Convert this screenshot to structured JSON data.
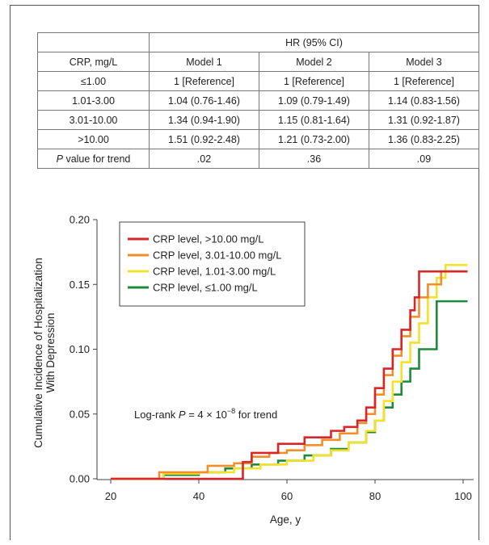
{
  "table": {
    "group_header": "HR (95% CI)",
    "headers": [
      "CRP, mg/L",
      "Model 1",
      "Model 2",
      "Model 3"
    ],
    "rows": [
      [
        "≤1.00",
        "1 [Reference]",
        "1 [Reference]",
        "1 [Reference]"
      ],
      [
        "1.01-3.00",
        "1.04 (0.76-1.46)",
        "1.09 (0.79-1.49)",
        "1.14 (0.83-1.56)"
      ],
      [
        "3.01-10.00",
        "1.34 (0.94-1.90)",
        "1.15 (0.81-1.64)",
        "1.31 (0.92-1.87)"
      ],
      [
        ">10.00",
        "1.51 (0.92-2.48)",
        "1.21 (0.73-2.00)",
        "1.36 (0.83-2.25)"
      ]
    ],
    "trend_row": {
      "label_italic": "P",
      "label_rest": " value for trend",
      "values": [
        ".02",
        ".36",
        ".09"
      ]
    }
  },
  "chart_data": {
    "type": "line",
    "xlabel": "Age, y",
    "ylabel_line1": "Cumulative Incidence of Hospitalization",
    "ylabel_line2": "With Depression",
    "xlim": [
      20,
      100
    ],
    "ylim": [
      0,
      0.2
    ],
    "xticks": [
      20,
      40,
      60,
      80,
      100
    ],
    "yticks": [
      0.0,
      0.05,
      0.1,
      0.15,
      0.2
    ],
    "ytick_labels": [
      "0.00",
      "0.05",
      "0.10",
      "0.15",
      "0.20"
    ],
    "annotation": {
      "prefix": "Log-rank ",
      "p": "P",
      "eq": " = 4 × 10",
      "exp": "−8",
      "suffix": " for trend"
    },
    "legend_position": "top-left",
    "series": [
      {
        "name": "CRP level, >10.00 mg/L",
        "color": "#d7272a",
        "points": [
          [
            20,
            0
          ],
          [
            49,
            0
          ],
          [
            50,
            0.013
          ],
          [
            52,
            0.02
          ],
          [
            56,
            0.02
          ],
          [
            58,
            0.027
          ],
          [
            62,
            0.027
          ],
          [
            64,
            0.032
          ],
          [
            70,
            0.037
          ],
          [
            73,
            0.04
          ],
          [
            76,
            0.045
          ],
          [
            78,
            0.055
          ],
          [
            80,
            0.07
          ],
          [
            82,
            0.085
          ],
          [
            84,
            0.1
          ],
          [
            86,
            0.115
          ],
          [
            88,
            0.13
          ],
          [
            89,
            0.14
          ],
          [
            90,
            0.16
          ],
          [
            92,
            0.16
          ],
          [
            101,
            0.16
          ]
        ]
      },
      {
        "name": "CRP level, 3.01-10.00 mg/L",
        "color": "#f28e2b",
        "points": [
          [
            20,
            0
          ],
          [
            30,
            0
          ],
          [
            31,
            0.005
          ],
          [
            38,
            0.005
          ],
          [
            42,
            0.01
          ],
          [
            48,
            0.012
          ],
          [
            52,
            0.017
          ],
          [
            56,
            0.02
          ],
          [
            60,
            0.022
          ],
          [
            64,
            0.026
          ],
          [
            68,
            0.03
          ],
          [
            72,
            0.035
          ],
          [
            76,
            0.043
          ],
          [
            78,
            0.05
          ],
          [
            80,
            0.065
          ],
          [
            82,
            0.08
          ],
          [
            84,
            0.095
          ],
          [
            86,
            0.11
          ],
          [
            88,
            0.125
          ],
          [
            90,
            0.14
          ],
          [
            92,
            0.15
          ],
          [
            94,
            0.15
          ],
          [
            95,
            0.16
          ],
          [
            101,
            0.16
          ]
        ]
      },
      {
        "name": "CRP level, 1.01-3.00 mg/L",
        "color": "#f5e12a",
        "points": [
          [
            20,
            0
          ],
          [
            30,
            0
          ],
          [
            32,
            0.004
          ],
          [
            40,
            0.005
          ],
          [
            48,
            0.008
          ],
          [
            54,
            0.011
          ],
          [
            60,
            0.014
          ],
          [
            66,
            0.018
          ],
          [
            70,
            0.022
          ],
          [
            74,
            0.028
          ],
          [
            78,
            0.037
          ],
          [
            80,
            0.045
          ],
          [
            82,
            0.06
          ],
          [
            84,
            0.075
          ],
          [
            86,
            0.09
          ],
          [
            88,
            0.105
          ],
          [
            90,
            0.12
          ],
          [
            92,
            0.14
          ],
          [
            94,
            0.155
          ],
          [
            96,
            0.165
          ],
          [
            101,
            0.165
          ]
        ]
      },
      {
        "name": "CRP level, ≤1.00 mg/L",
        "color": "#1f8a3c",
        "points": [
          [
            20,
            0
          ],
          [
            31,
            0
          ],
          [
            32,
            0.003
          ],
          [
            36,
            0.003
          ],
          [
            40,
            0.005
          ],
          [
            46,
            0.008
          ],
          [
            52,
            0.011
          ],
          [
            58,
            0.014
          ],
          [
            64,
            0.018
          ],
          [
            70,
            0.023
          ],
          [
            74,
            0.028
          ],
          [
            78,
            0.036
          ],
          [
            80,
            0.045
          ],
          [
            82,
            0.055
          ],
          [
            84,
            0.065
          ],
          [
            86,
            0.075
          ],
          [
            88,
            0.085
          ],
          [
            90,
            0.1
          ],
          [
            94,
            0.1
          ],
          [
            94,
            0.137
          ],
          [
            101,
            0.137
          ]
        ]
      }
    ]
  }
}
